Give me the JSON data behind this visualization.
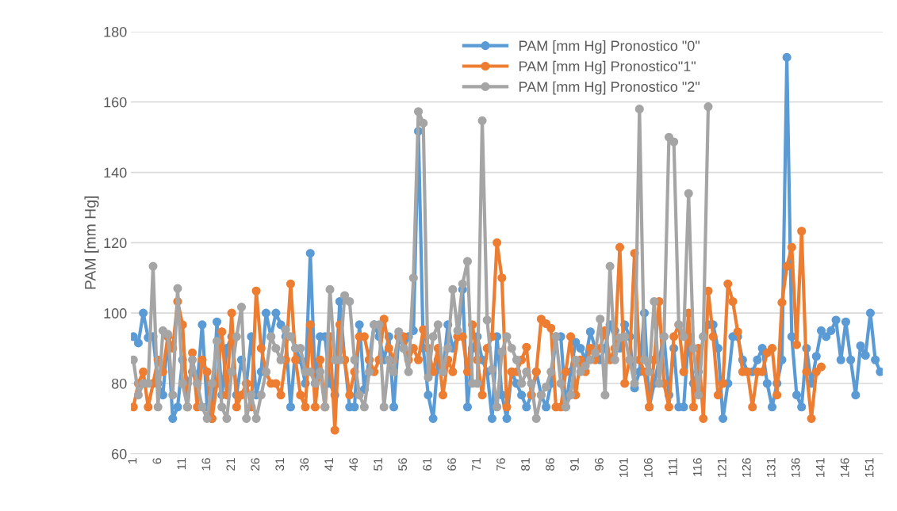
{
  "chart_data": {
    "type": "line",
    "ylabel": "PAM [mm Hg]",
    "categories": [
      "1",
      null,
      null,
      null,
      null,
      "6",
      null,
      null,
      null,
      null,
      "11",
      null,
      null,
      null,
      null,
      "16",
      null,
      null,
      null,
      null,
      "21",
      null,
      null,
      null,
      null,
      "26",
      null,
      null,
      null,
      null,
      "31",
      null,
      null,
      null,
      null,
      "36",
      null,
      null,
      null,
      null,
      "41",
      null,
      null,
      null,
      null,
      "46",
      null,
      null,
      null,
      null,
      "51",
      null,
      null,
      null,
      null,
      "56",
      null,
      null,
      null,
      null,
      "61",
      null,
      null,
      null,
      null,
      "66",
      null,
      null,
      null,
      null,
      "71",
      null,
      null,
      null,
      null,
      "76",
      null,
      null,
      null,
      null,
      "81",
      null,
      null,
      null,
      null,
      "86",
      null,
      null,
      null,
      null,
      "91",
      null,
      null,
      null,
      null,
      "96",
      null,
      null,
      null,
      null,
      "101",
      null,
      null,
      null,
      null,
      "106",
      null,
      null,
      null,
      null,
      "111",
      null,
      null,
      null,
      null,
      "116",
      null,
      null,
      null,
      null,
      "121",
      null,
      null,
      null,
      null,
      "126",
      null,
      null,
      null,
      null,
      "131",
      null,
      null,
      null,
      null,
      "136",
      null,
      null,
      null,
      null,
      "141",
      null,
      null,
      null,
      null,
      "146",
      null,
      null,
      null,
      null,
      "151",
      null,
      null
    ],
    "series": [
      {
        "name": "PAM [mm Hg] Pronostico \"0\"",
        "color": "#5b9bd5",
        "values": [
          93.3,
          91.5,
          100,
          93,
          93.3,
          80,
          76.7,
          93.3,
          70,
          73.3,
          86.7,
          80,
          83.3,
          80,
          96.7,
          73.3,
          70,
          97.5,
          76.7,
          90,
          93.3,
          76.7,
          86.7,
          80,
          93.3,
          76.7,
          83.3,
          100,
          93.3,
          100,
          96.7,
          93.3,
          73.3,
          90,
          86.7,
          80,
          117,
          80,
          93.3,
          93.3,
          80,
          76.7,
          103.3,
          86.7,
          73.3,
          73.3,
          96.7,
          78.3,
          86.7,
          96.7,
          93.3,
          86.7,
          93.3,
          73.3,
          93.3,
          90,
          93.3,
          95,
          151.7,
          90,
          76.7,
          70,
          86.7,
          83.3,
          96.7,
          90,
          93.3,
          106.7,
          73.3,
          90,
          93.3,
          86.7,
          83.3,
          70,
          93.3,
          76.7,
          70,
          83.3,
          80,
          76.7,
          73.3,
          76.7,
          83.3,
          76.7,
          73.3,
          80,
          93.3,
          93.3,
          73.3,
          83.3,
          91.7,
          90,
          86.7,
          94.7,
          90,
          86.7,
          90,
          96.7,
          95,
          90,
          96.7,
          93.3,
          78.7,
          83.3,
          100,
          73.3,
          80,
          86.7,
          93.3,
          76.7,
          90,
          73.3,
          73.3,
          93.3,
          80,
          83.3,
          93.3,
          96.7,
          96.7,
          90,
          70,
          80,
          93.3,
          93.3,
          86.7,
          83.3,
          83.3,
          86.7,
          90,
          80,
          73.3,
          80,
          86.7,
          172.7,
          93.3,
          76.7,
          73.3,
          90,
          80,
          87.7,
          95,
          93.3,
          95,
          98,
          86.7,
          97.5,
          86.7,
          76.7,
          90.7,
          88,
          100,
          86.7,
          83.3
        ]
      },
      {
        "name": "PAM [mm Hg] Pronostico\"1\"",
        "color": "#ed7d31",
        "values": [
          73.3,
          80,
          83.3,
          73.3,
          80,
          86.7,
          83.3,
          93.3,
          90,
          103.3,
          96.7,
          73.3,
          88.7,
          73.3,
          86.7,
          83.3,
          70,
          80,
          94.7,
          76.7,
          100,
          73.3,
          76.7,
          80,
          73.3,
          106.3,
          90,
          83.3,
          80,
          80,
          76.7,
          86.7,
          108.3,
          86.7,
          76.7,
          73.3,
          96.7,
          73.3,
          86.7,
          73.3,
          93.3,
          66.7,
          96.7,
          86.7,
          76.7,
          83.3,
          93.3,
          93.3,
          86.7,
          83.3,
          86.7,
          98.3,
          90,
          86.7,
          93.3,
          93.3,
          86.7,
          90,
          86.7,
          95.3,
          90,
          83.3,
          90,
          76.7,
          86.7,
          83.3,
          93.3,
          93.3,
          83.3,
          96.7,
          86.7,
          76.7,
          90,
          93.3,
          120,
          110,
          73.3,
          83.3,
          83.3,
          86.7,
          90.3,
          76.7,
          83.3,
          98.3,
          97,
          95.7,
          73.3,
          73.3,
          83.3,
          93.3,
          76.7,
          86.7,
          83.3,
          90,
          86.7,
          90,
          95,
          86.7,
          90,
          118.7,
          80,
          86.7,
          117,
          86.7,
          83.3,
          73.3,
          86.7,
          103.3,
          80,
          73.3,
          93.3,
          96.7,
          83.3,
          100,
          73.3,
          90,
          70,
          106.3,
          93.3,
          76.7,
          80,
          108.3,
          103.3,
          94.7,
          83.3,
          83.3,
          73.3,
          83.3,
          83.3,
          88.7,
          90,
          76.7,
          103,
          113.3,
          118.7,
          91,
          123.3,
          83.3,
          70,
          83.3,
          84.7,
          null,
          null,
          null,
          null,
          null,
          null,
          null,
          null,
          null,
          null,
          null,
          null
        ]
      },
      {
        "name": "PAM [mm Hg] Pronostico \"2\"",
        "color": "#a5a5a5",
        "values": [
          86.7,
          76.7,
          80,
          80,
          113.3,
          73.3,
          95,
          94,
          76.7,
          107,
          80,
          73.3,
          86.7,
          80,
          73.3,
          70,
          80,
          92,
          73.3,
          70,
          83.3,
          93.3,
          101.7,
          70,
          76.7,
          70,
          76.7,
          83.3,
          93.3,
          90,
          86.7,
          95.3,
          93.3,
          90,
          90,
          83.3,
          83.3,
          80,
          83.3,
          73.3,
          106.7,
          86.7,
          86.7,
          105,
          103.3,
          86.7,
          76.7,
          73.3,
          83.3,
          96.7,
          96.7,
          73.3,
          86.7,
          83.3,
          94.7,
          90,
          83.3,
          110,
          157.3,
          154,
          81.7,
          93.3,
          96.7,
          83.3,
          90,
          106.7,
          95,
          108.3,
          114.7,
          80,
          80,
          154.7,
          98,
          84,
          73.3,
          89,
          93.3,
          90,
          86.7,
          80,
          83.3,
          80,
          70,
          76.7,
          79,
          83.3,
          93.3,
          80,
          73.3,
          76.7,
          86.7,
          83.3,
          85,
          86.7,
          88.7,
          98.3,
          76.7,
          113.3,
          86.7,
          93,
          93.3,
          86.7,
          80,
          158,
          86.7,
          83.3,
          103.3,
          80,
          93.3,
          150,
          148.7,
          96.7,
          93.3,
          134,
          90,
          76.7,
          93.3,
          158.7,
          null,
          null,
          null,
          null,
          null,
          null,
          null,
          null,
          null,
          null,
          null,
          null,
          null,
          null,
          null,
          null,
          null,
          null,
          null,
          null,
          null,
          null,
          null,
          null,
          null,
          null,
          null,
          null,
          null,
          null,
          null,
          null,
          null,
          null,
          null
        ]
      }
    ],
    "ylim": [
      60,
      180
    ],
    "yticks": [
      60,
      80,
      100,
      120,
      140,
      160,
      180
    ],
    "grid": "y",
    "legend": "top",
    "marker": "circle",
    "line_style": "solid"
  }
}
